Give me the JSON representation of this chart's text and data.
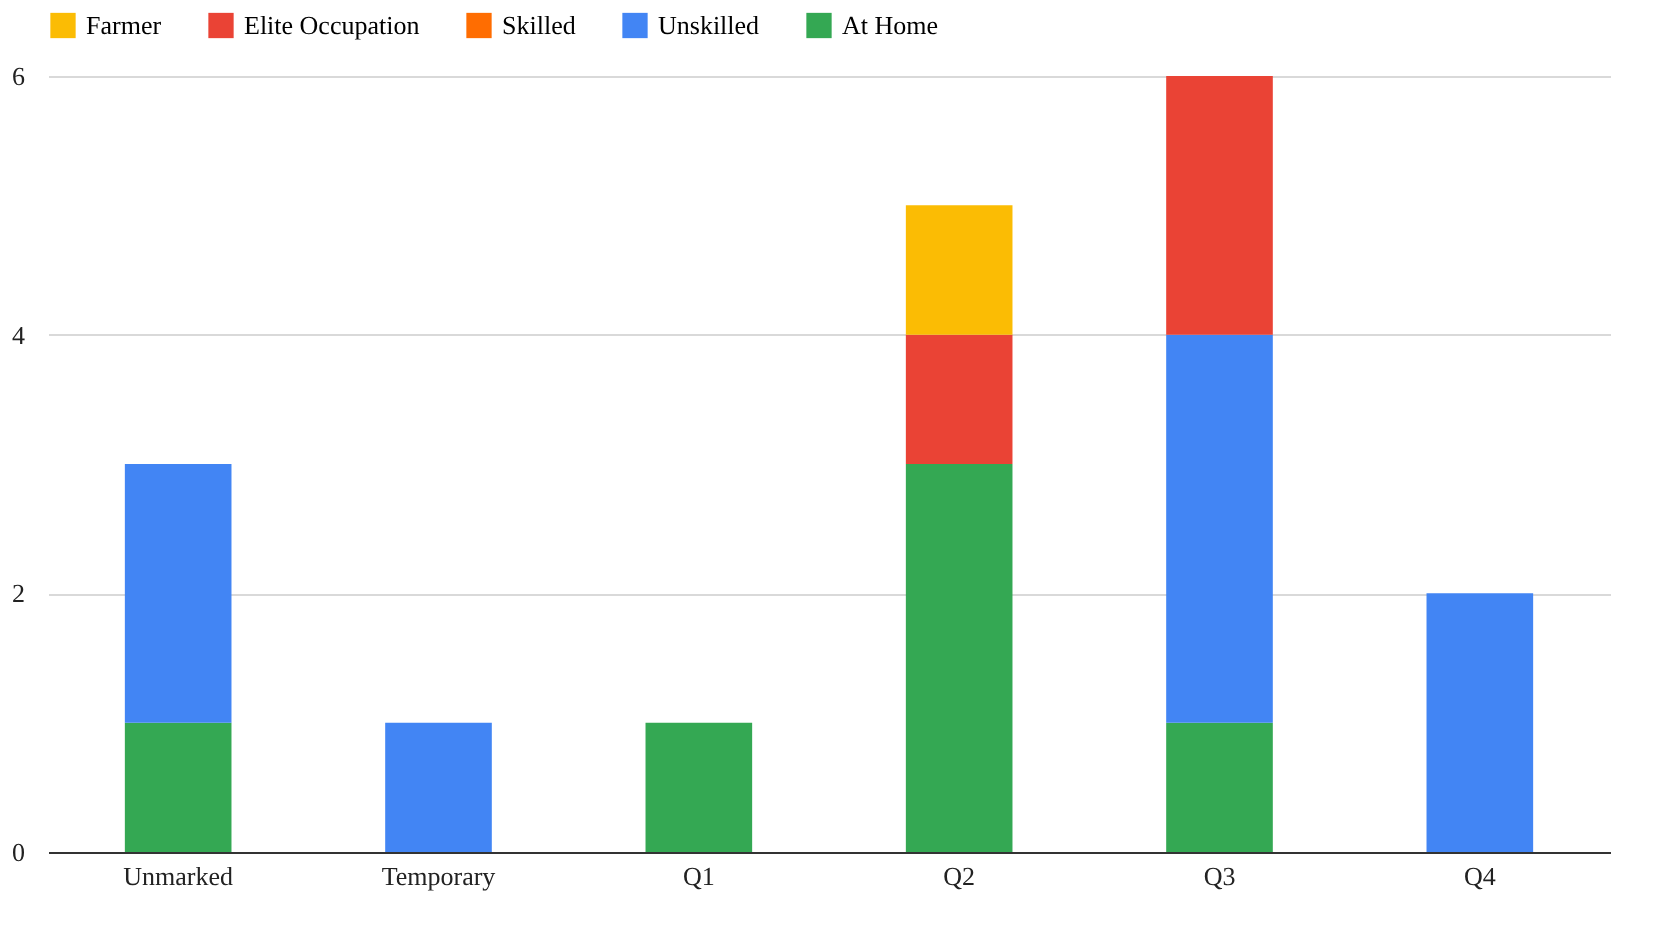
{
  "chart_data": {
    "type": "bar",
    "stacked": true,
    "categories": [
      "Unmarked",
      "Temporary",
      "Q1",
      "Q2",
      "Q3",
      "Q4"
    ],
    "series": [
      {
        "name": "At Home",
        "color": "#34a853",
        "values": [
          1,
          null,
          1,
          3,
          1,
          null
        ]
      },
      {
        "name": "Unskilled",
        "color": "#4285f4",
        "values": [
          2,
          1,
          null,
          null,
          3,
          2
        ]
      },
      {
        "name": "Skilled",
        "color": "#ff6d01",
        "values": [
          null,
          null,
          null,
          null,
          null,
          null
        ]
      },
      {
        "name": "Elite Occupation",
        "color": "#ea4335",
        "values": [
          null,
          null,
          null,
          1,
          2,
          null
        ]
      },
      {
        "name": "Farmer",
        "color": "#fbbc04",
        "values": [
          null,
          null,
          null,
          1,
          null,
          null
        ]
      }
    ],
    "ylim": [
      0,
      6
    ],
    "yticks": [
      0,
      2,
      4,
      6
    ],
    "grid": "y",
    "legend": "top"
  }
}
